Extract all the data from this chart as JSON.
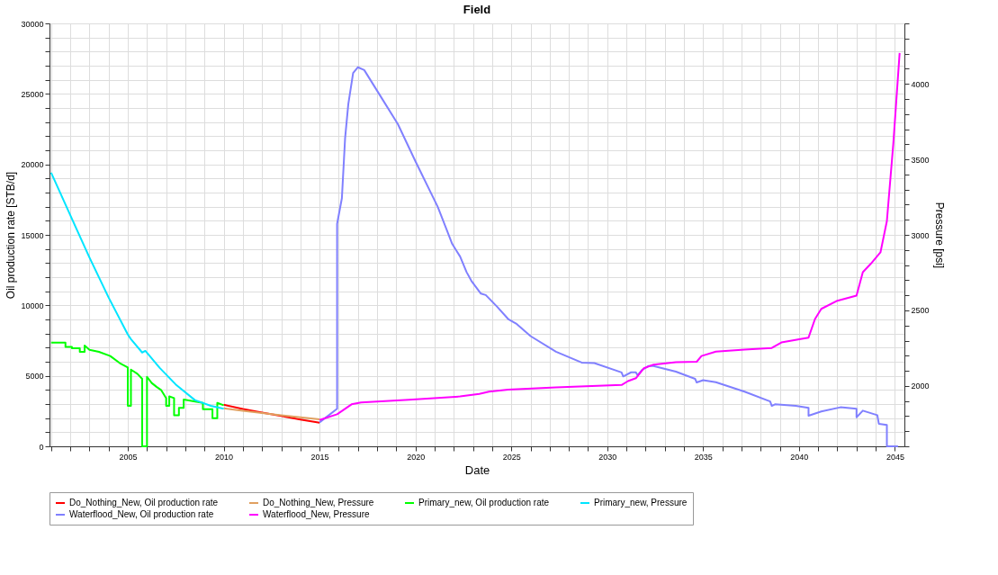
{
  "chart_data": {
    "type": "line",
    "title": "Field",
    "xlabel": "Date",
    "ylabel": "Oil production rate [STB/d]",
    "y2label": "Pressure [psi]",
    "xlim": [
      "2000-12",
      "2045-07"
    ],
    "xticks": [
      {
        "value": "2001",
        "label": null
      },
      {
        "value": "2002",
        "label": null
      },
      {
        "value": "2003",
        "label": null
      },
      {
        "value": "2004",
        "label": null
      },
      "2005",
      {
        "value": "2006",
        "label": null
      },
      {
        "value": "2007",
        "label": null
      },
      {
        "value": "2008",
        "label": null
      },
      {
        "value": "2009",
        "label": null
      },
      "2010",
      {
        "value": "2011",
        "label": null
      },
      {
        "value": "2012",
        "label": null
      },
      {
        "value": "2013",
        "label": null
      },
      {
        "value": "2014",
        "label": null
      },
      "2015",
      {
        "value": "2016",
        "label": null
      },
      {
        "value": "2017",
        "label": null
      },
      {
        "value": "2018",
        "label": null
      },
      {
        "value": "2019",
        "label": null
      },
      "2020",
      {
        "value": "2021",
        "label": null
      },
      {
        "value": "2022",
        "label": null
      },
      {
        "value": "2023",
        "label": null
      },
      {
        "value": "2024",
        "label": null
      },
      "2025",
      {
        "value": "2026",
        "label": null
      },
      {
        "value": "2027",
        "label": null
      },
      {
        "value": "2028",
        "label": null
      },
      {
        "value": "2029",
        "label": null
      },
      "2030",
      {
        "value": "2031",
        "label": null
      },
      {
        "value": "2032",
        "label": null
      },
      {
        "value": "2033",
        "label": null
      },
      {
        "value": "2034",
        "label": null
      },
      "2035",
      {
        "value": "2036",
        "label": null
      },
      {
        "value": "2037",
        "label": null
      },
      {
        "value": "2038",
        "label": null
      },
      {
        "value": "2039",
        "label": null
      },
      "2040",
      {
        "value": "2041",
        "label": null
      },
      {
        "value": "2042",
        "label": null
      },
      {
        "value": "2043",
        "label": null
      },
      {
        "value": "2044",
        "label": null
      },
      "2045"
    ],
    "ylim": [
      0,
      30000
    ],
    "yticks": [
      0,
      {
        "value": 1000,
        "label": null
      },
      {
        "value": 2000,
        "label": null
      },
      {
        "value": 3000,
        "label": null
      },
      {
        "value": 4000,
        "label": null
      },
      5000,
      {
        "value": 6000,
        "label": null
      },
      {
        "value": 7000,
        "label": null
      },
      {
        "value": 8000,
        "label": null
      },
      {
        "value": 9000,
        "label": null
      },
      10000,
      {
        "value": 11000,
        "label": null
      },
      {
        "value": 12000,
        "label": null
      },
      {
        "value": 13000,
        "label": null
      },
      {
        "value": 14000,
        "label": null
      },
      15000,
      {
        "value": 16000,
        "label": null
      },
      {
        "value": 17000,
        "label": null
      },
      {
        "value": 18000,
        "label": null
      },
      {
        "value": 19000,
        "label": null
      },
      20000,
      {
        "value": 21000,
        "label": null
      },
      {
        "value": 22000,
        "label": null
      },
      {
        "value": 23000,
        "label": null
      },
      {
        "value": 24000,
        "label": null
      },
      25000,
      {
        "value": 26000,
        "label": null
      },
      {
        "value": 27000,
        "label": null
      },
      {
        "value": 28000,
        "label": null
      },
      {
        "value": 29000,
        "label": null
      },
      30000
    ],
    "y2lim": [
      1600,
      4400
    ],
    "y2ticks": [
      {
        "value": 1600,
        "label": null
      },
      {
        "value": 1700,
        "label": null
      },
      {
        "value": 1800,
        "label": null
      },
      {
        "value": 1900,
        "label": null
      },
      2000,
      {
        "value": 2100,
        "label": null
      },
      {
        "value": 2200,
        "label": null
      },
      {
        "value": 2300,
        "label": null
      },
      {
        "value": 2400,
        "label": null
      },
      2500,
      {
        "value": 2600,
        "label": null
      },
      {
        "value": 2700,
        "label": null
      },
      {
        "value": 2800,
        "label": null
      },
      {
        "value": 2900,
        "label": null
      },
      3000,
      {
        "value": 3100,
        "label": null
      },
      {
        "value": 3200,
        "label": null
      },
      {
        "value": 3300,
        "label": null
      },
      {
        "value": 3400,
        "label": null
      },
      3500,
      {
        "value": 3600,
        "label": null
      },
      {
        "value": 3700,
        "label": null
      },
      {
        "value": 3800,
        "label": null
      },
      {
        "value": 3900,
        "label": null
      },
      4000,
      {
        "value": 4100,
        "label": null
      },
      {
        "value": 4200,
        "label": null
      },
      {
        "value": 4300,
        "label": null
      },
      {
        "value": 4400,
        "label": null
      }
    ],
    "grid": true,
    "legend": "bottom",
    "series": [
      {
        "name": "Do_Nothing_New, Oil production rate",
        "color": "#ff0000",
        "x": [
          "2010-01",
          "2011-01",
          "2012-01",
          "2013-01",
          "2014-01",
          "2015-01"
        ],
        "values": [
          2950,
          2650,
          2400,
          2150,
          1900,
          1680
        ]
      },
      {
        "name": "Do_Nothing_New, Pressure",
        "color": "#e0a060",
        "axis": "y2",
        "x": [
          "2010-01",
          "2011-01",
          "2012-01",
          "2013-01",
          "2014-01",
          "2015-01"
        ],
        "values": [
          1852,
          1835,
          1820,
          1805,
          1792,
          1779
        ]
      },
      {
        "name": "Primary_new, Oil production rate",
        "color": "#00ff00",
        "x": [
          "2001-01",
          "2001-10",
          "2001-10",
          "2002-02",
          "2002-02",
          "2002-07",
          "2002-07",
          "2002-10",
          "2002-10",
          "2003-01",
          "2003-07",
          "2004-02",
          "2004-08",
          "2005-01",
          "2005-01",
          "2005-03",
          "2005-03",
          "2005-07",
          "2005-10",
          "2005-10",
          "2006-01",
          "2006-01",
          "2006-04",
          "2006-07",
          "2006-10",
          "2007-01",
          "2007-01",
          "2007-03",
          "2007-03",
          "2007-06",
          "2007-06",
          "2007-09",
          "2007-09",
          "2007-12",
          "2007-12",
          "2008-12",
          "2008-12",
          "2009-06",
          "2009-06",
          "2009-09",
          "2009-09",
          "2010-01"
        ],
        "values": [
          7360,
          7360,
          7050,
          7050,
          6950,
          6950,
          6710,
          6710,
          7150,
          6850,
          6700,
          6410,
          5900,
          5600,
          2870,
          2870,
          5440,
          5150,
          4790,
          0,
          0,
          4930,
          4490,
          4220,
          3980,
          3420,
          2870,
          2870,
          3540,
          3420,
          2210,
          2210,
          2730,
          2730,
          3320,
          3080,
          2630,
          2630,
          2000,
          2000,
          3080,
          2910
        ]
      },
      {
        "name": "Primary_new, Pressure",
        "color": "#00e5ff",
        "axis": "y2",
        "x": [
          "2001-01",
          "2002-01",
          "2003-01",
          "2004-01",
          "2005-01",
          "2005-03",
          "2005-10",
          "2005-12",
          "2006-09",
          "2007-07",
          "2008-07",
          "2009-05",
          "2010-01"
        ],
        "values": [
          3412,
          3130,
          2850,
          2585,
          2340,
          2310,
          2221,
          2232,
          2119,
          2010,
          1906,
          1868,
          1849
        ]
      },
      {
        "name": "Waterflood_New, Oil production rate",
        "color": "#8080ff",
        "x": [
          "2015-01",
          "2015-12",
          "2015-12",
          "2016-03",
          "2016-05",
          "2016-07",
          "2016-10",
          "2017-01",
          "2017-05",
          "2018-03",
          "2019-02",
          "2020-01",
          "2021-03",
          "2021-12",
          "2022-05",
          "2022-09",
          "2022-12",
          "2023-06",
          "2023-09",
          "2024-04",
          "2024-11",
          "2025-04",
          "2026-01",
          "2027-05",
          "2028-09",
          "2029-05",
          "2030-10",
          "2030-11",
          "2031-04",
          "2031-07",
          "2031-08",
          "2031-11",
          "2032-03",
          "2032-06",
          "2033-08",
          "2034-08",
          "2034-09",
          "2035-01",
          "2035-09",
          "2037-03",
          "2038-07",
          "2038-08",
          "2038-10",
          "2039-11",
          "2040-07",
          "2040-07",
          "2041-03",
          "2042-03",
          "2043-01",
          "2043-01",
          "2043-05",
          "2044-02",
          "2044-03",
          "2044-08",
          "2044-08",
          "2045-03"
        ],
        "values": [
          1700,
          2670,
          15780,
          17600,
          21850,
          24260,
          26480,
          26890,
          26690,
          24870,
          22850,
          20220,
          16990,
          14360,
          13460,
          12360,
          11740,
          10830,
          10730,
          9920,
          9030,
          8710,
          7820,
          6710,
          5940,
          5900,
          5240,
          4960,
          5250,
          5250,
          5040,
          5440,
          5700,
          5700,
          5300,
          4790,
          4530,
          4690,
          4550,
          3880,
          3180,
          2870,
          2980,
          2870,
          2730,
          2170,
          2470,
          2770,
          2670,
          2060,
          2530,
          2210,
          1600,
          1520,
          0,
          0
        ]
      },
      {
        "name": "Waterflood_New, Pressure",
        "color": "#ff00ff",
        "axis": "y2",
        "x": [
          "2015-01",
          "2015-12",
          "2016-09",
          "2017-03",
          "2019-09",
          "2022-05",
          "2023-05",
          "2023-11",
          "2024-11",
          "2027-05",
          "2030-10",
          "2031-02",
          "2031-07",
          "2031-12",
          "2032-06",
          "2033-08",
          "2034-09",
          "2034-12",
          "2035-09",
          "2037-03",
          "2038-08",
          "2039-02",
          "2040-02",
          "2040-07",
          "2040-11",
          "2041-03",
          "2042-01",
          "2043-01",
          "2043-05",
          "2043-10",
          "2044-04",
          "2044-08",
          "2044-12",
          "2045-04"
        ],
        "values": [
          1774,
          1812,
          1878,
          1891,
          1909,
          1930,
          1947,
          1962,
          1976,
          1990,
          2006,
          2032,
          2051,
          2117,
          2141,
          2157,
          2160,
          2198,
          2227,
          2240,
          2251,
          2288,
          2311,
          2320,
          2443,
          2510,
          2564,
          2598,
          2753,
          2809,
          2884,
          3091,
          3601,
          4204
        ]
      }
    ]
  }
}
